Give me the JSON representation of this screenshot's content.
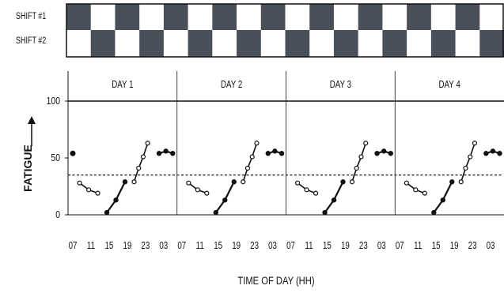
{
  "shift_schedule": {
    "shift_labels": [
      "SHIFT #1",
      "SHIFT #2"
    ],
    "pattern_shift1": [
      1,
      0,
      1,
      0,
      1,
      0,
      1,
      0,
      1,
      0,
      1,
      0,
      1,
      0,
      1,
      0,
      1,
      0
    ],
    "pattern_shift2": [
      0,
      1,
      0,
      1,
      0,
      1,
      0,
      1,
      0,
      1,
      0,
      1,
      0,
      1,
      0,
      1,
      0,
      1
    ],
    "dark_color": "#4a505a",
    "light_color": "#ffffff"
  },
  "chart_data": {
    "type": "line",
    "title": "",
    "xlabel": "TIME OF DAY (HH)",
    "ylabel": "FATIGUE",
    "ylim": [
      0,
      100
    ],
    "y_ticks": [
      0,
      50,
      100
    ],
    "day_labels": [
      "DAY 1",
      "DAY 2",
      "DAY 3",
      "DAY 4"
    ],
    "x_tick_labels": [
      "07",
      "11",
      "15",
      "19",
      "23",
      "03",
      "07",
      "11",
      "15",
      "19",
      "23",
      "03",
      "07",
      "11",
      "15",
      "19",
      "23",
      "03",
      "07",
      "11",
      "15",
      "19",
      "23",
      "03"
    ],
    "threshold": {
      "value": 35,
      "style": "dashed"
    },
    "grid": false,
    "segments_per_day": [
      {
        "name": "",
        "marker": "open",
        "x": [
          9,
          11,
          13
        ],
        "y": [
          28,
          22,
          19
        ]
      },
      {
        "name": "",
        "marker": "filled",
        "x": [
          15,
          17,
          19
        ],
        "y": [
          2,
          13,
          29
        ]
      },
      {
        "name": "",
        "marker": "open",
        "x": [
          21,
          22,
          23,
          24
        ],
        "y": [
          29,
          41,
          51,
          63
        ]
      },
      {
        "name": "",
        "marker": "filled",
        "x": [
          26.5,
          28,
          29.5
        ],
        "y": [
          54,
          56,
          54
        ]
      }
    ],
    "initial_point": {
      "x": 7.5,
      "y": 54,
      "marker": "filled"
    },
    "colors": {
      "line": "#111111",
      "axis": "#111111"
    }
  }
}
